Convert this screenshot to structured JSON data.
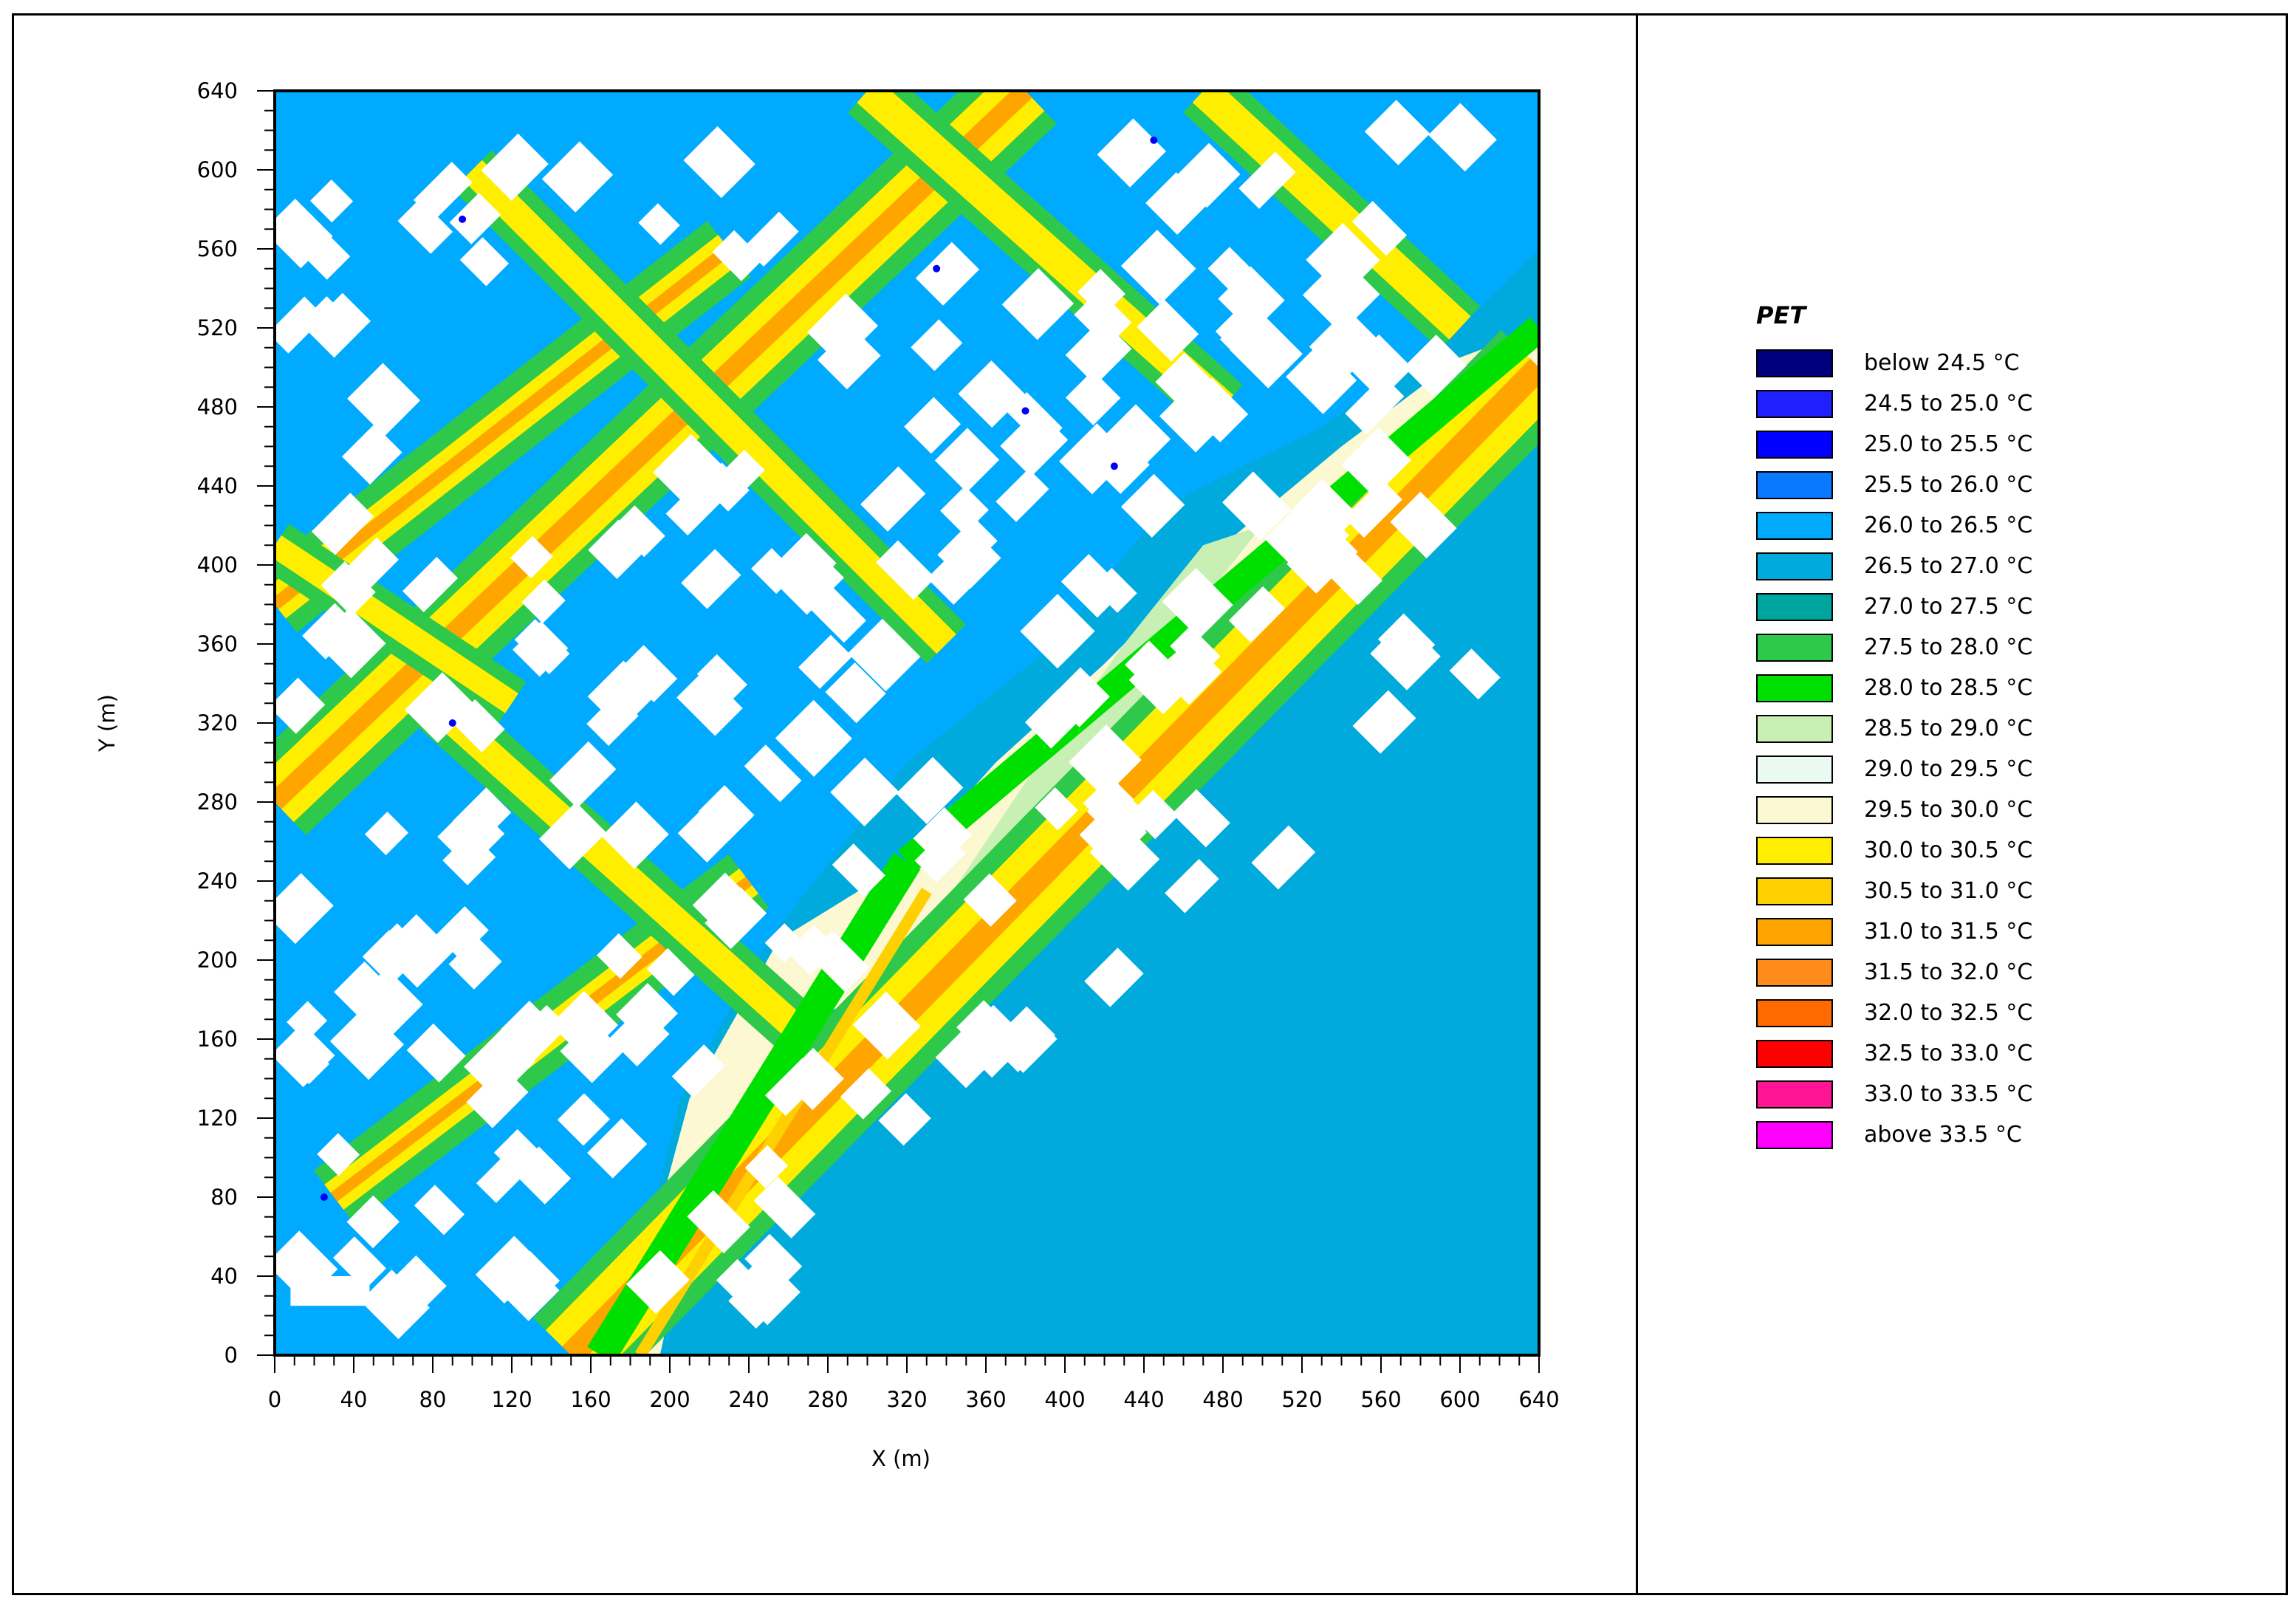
{
  "chart_data": {
    "type": "heatmap",
    "title": "",
    "xlabel": "X (m)",
    "ylabel": "Y (m)",
    "xlim": [
      0,
      640
    ],
    "ylim": [
      0,
      640
    ],
    "x_ticks": [
      "0",
      "40",
      "80",
      "120",
      "160",
      "200",
      "240",
      "280",
      "320",
      "360",
      "400",
      "440",
      "480",
      "520",
      "560",
      "600",
      "640"
    ],
    "y_ticks": [
      "0",
      "40",
      "80",
      "120",
      "160",
      "200",
      "240",
      "280",
      "320",
      "360",
      "400",
      "440",
      "480",
      "520",
      "560",
      "600",
      "640"
    ],
    "legend": {
      "title": "PET",
      "entries": [
        {
          "label": "below 24.5 °C",
          "color": "#00007f"
        },
        {
          "label": "24.5 to 25.0 °C",
          "color": "#1f1fff"
        },
        {
          "label": "25.0 to 25.5 °C",
          "color": "#0000ff"
        },
        {
          "label": "25.5 to 26.0 °C",
          "color": "#0a78ff"
        },
        {
          "label": "26.0 to 26.5 °C",
          "color": "#00aaff"
        },
        {
          "label": "26.5 to 27.0 °C",
          "color": "#00aadd"
        },
        {
          "label": "27.0 to 27.5 °C",
          "color": "#00a5a0"
        },
        {
          "label": "27.5 to 28.0 °C",
          "color": "#2ec84b"
        },
        {
          "label": "28.0 to 28.5 °C",
          "color": "#00e000"
        },
        {
          "label": "28.5 to 29.0 °C",
          "color": "#c8f0b4"
        },
        {
          "label": "29.0 to 29.5 °C",
          "color": "#eafaf0"
        },
        {
          "label": "29.5 to 30.0 °C",
          "color": "#fcf8d2"
        },
        {
          "label": "30.0 to 30.5 °C",
          "color": "#ffee00"
        },
        {
          "label": "30.5 to 31.0 °C",
          "color": "#ffd000"
        },
        {
          "label": "31.0 to 31.5 °C",
          "color": "#ffa500"
        },
        {
          "label": "31.5 to 32.0 °C",
          "color": "#ff8c1a"
        },
        {
          "label": "32.0 to 32.5 °C",
          "color": "#ff6a00"
        },
        {
          "label": "32.5 to 33.0 °C",
          "color": "#ff0000"
        },
        {
          "label": "33.0 to 33.5 °C",
          "color": "#ff1493"
        },
        {
          "label": "above 33.5 °C",
          "color": "#ff00ff"
        }
      ]
    },
    "colors": {
      "water": "#00aadd",
      "shade": "#00aaff",
      "building": "#ffffff",
      "street": "#2ec84b",
      "street_core": "#ffee00",
      "street_hot": "#ffa500",
      "beach": "#fcf8d2",
      "vegetation": "#00e000"
    }
  }
}
